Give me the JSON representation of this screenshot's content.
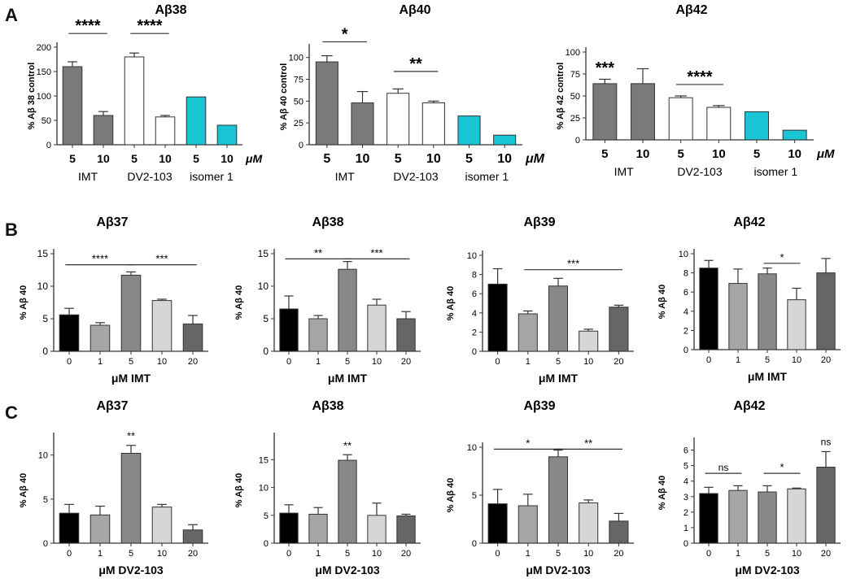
{
  "panels": {
    "a": "A",
    "b": "B",
    "c": "C"
  },
  "chart_data": [
    {
      "id": "A1",
      "type": "bar",
      "title": "Aβ38",
      "ylabel": "% Aβ 38 control",
      "ylim": [
        0,
        200
      ],
      "yticks": [
        "0",
        "50",
        "100",
        "150",
        "200"
      ],
      "categories": [
        "5",
        "10",
        "5",
        "10",
        "5",
        "10"
      ],
      "unit": "μM",
      "groups": [
        "IMT",
        "DV2-103",
        "isomer 1"
      ],
      "values": [
        160,
        60,
        180,
        57,
        98,
        40
      ],
      "errors": [
        10,
        8,
        8,
        3,
        0,
        0
      ],
      "colors": [
        "#7a7a7a",
        "#7a7a7a",
        "#ffffff",
        "#ffffff",
        "#19c5d4",
        "#19c5d4"
      ],
      "annotations": [
        {
          "text": "****",
          "from": 0,
          "to": 1,
          "y": 228,
          "line": true
        },
        {
          "text": "****",
          "from": 2,
          "to": 3,
          "y": 228,
          "line": true
        }
      ]
    },
    {
      "id": "A2",
      "type": "bar",
      "title": "Aβ40",
      "ylabel": "% Aβ 40 control",
      "ylim": [
        0,
        110
      ],
      "yticks": [
        "0",
        "25",
        "50",
        "75",
        "100"
      ],
      "categories": [
        "5",
        "10",
        "5",
        "10",
        "5",
        "10"
      ],
      "unit": "μM",
      "groups": [
        "IMT",
        "DV2-103",
        "isomer 1"
      ],
      "values": [
        95,
        48,
        59,
        48,
        33,
        11
      ],
      "errors": [
        7,
        13,
        5,
        2,
        0,
        0
      ],
      "colors": [
        "#7a7a7a",
        "#7a7a7a",
        "#ffffff",
        "#ffffff",
        "#19c5d4",
        "#19c5d4"
      ],
      "annotations": [
        {
          "text": "*",
          "from": 0,
          "to": 1,
          "y": 118,
          "line": true
        },
        {
          "text": "**",
          "from": 2,
          "to": 3,
          "y": 84,
          "line": true
        }
      ]
    },
    {
      "id": "A3",
      "type": "bar",
      "title": "Aβ42",
      "ylabel": "% Aβ 42 control",
      "ylim": [
        0,
        100
      ],
      "yticks": [
        "0",
        "25",
        "50",
        "75",
        "100"
      ],
      "categories": [
        "5",
        "10",
        "5",
        "10",
        "5",
        "10"
      ],
      "unit": "μM",
      "groups": [
        "IMT",
        "DV2-103",
        "isomer 1"
      ],
      "values": [
        64,
        64,
        48,
        37,
        32,
        11
      ],
      "errors": [
        5,
        17,
        2,
        2,
        0,
        0
      ],
      "colors": [
        "#7a7a7a",
        "#7a7a7a",
        "#ffffff",
        "#ffffff",
        "#19c5d4",
        "#19c5d4"
      ],
      "annotations": [
        {
          "text": "***",
          "from": 0,
          "to": 0,
          "y": 74,
          "line": false
        },
        {
          "text": "****",
          "from": 2,
          "to": 3,
          "y": 63,
          "line": true
        }
      ]
    },
    {
      "id": "B1",
      "type": "bar",
      "title": "Aβ37",
      "ylabel": "% Aβ 40",
      "xlabel": "μM IMT",
      "ylim": [
        0,
        15
      ],
      "yticks": [
        "0",
        "5",
        "10",
        "15"
      ],
      "categories": [
        "0",
        "1",
        "5",
        "10",
        "20"
      ],
      "values": [
        5.6,
        4.0,
        11.7,
        7.8,
        4.2
      ],
      "errors": [
        1.0,
        0.4,
        0.5,
        0.2,
        1.3
      ],
      "colors": [
        "#000000",
        "#a6a6a6",
        "#888888",
        "#d6d6d6",
        "#666666"
      ],
      "annotations": [
        {
          "text": "****",
          "from": 0,
          "to": 2,
          "y": 13.3,
          "line": true
        },
        {
          "text": "***",
          "from": 2,
          "to": 4,
          "y": 13.3,
          "line": true
        }
      ]
    },
    {
      "id": "B2",
      "type": "bar",
      "title": "Aβ38",
      "ylabel": "% Aβ 40",
      "xlabel": "μM IMT",
      "ylim": [
        0,
        15
      ],
      "yticks": [
        "0",
        "5",
        "10",
        "15"
      ],
      "categories": [
        "0",
        "1",
        "5",
        "10",
        "20"
      ],
      "values": [
        6.5,
        5.0,
        12.6,
        7.1,
        5.0
      ],
      "errors": [
        2.0,
        0.5,
        1.2,
        0.9,
        1.1
      ],
      "colors": [
        "#000000",
        "#a6a6a6",
        "#888888",
        "#d6d6d6",
        "#666666"
      ],
      "annotations": [
        {
          "text": "**",
          "from": 0,
          "to": 2,
          "y": 14.2,
          "line": true
        },
        {
          "text": "***",
          "from": 2,
          "to": 4,
          "y": 14.2,
          "line": true
        }
      ]
    },
    {
      "id": "B3",
      "type": "bar",
      "title": "Aβ39",
      "ylabel": "% Aβ 40",
      "xlabel": "μM IMT",
      "ylim": [
        0,
        10
      ],
      "yticks": [
        "0",
        "2",
        "4",
        "6",
        "8",
        "10"
      ],
      "categories": [
        "0",
        "1",
        "5",
        "10",
        "20"
      ],
      "values": [
        7.0,
        3.9,
        6.8,
        2.1,
        4.6
      ],
      "errors": [
        1.6,
        0.3,
        0.8,
        0.2,
        0.2
      ],
      "colors": [
        "#000000",
        "#a6a6a6",
        "#888888",
        "#d6d6d6",
        "#666666"
      ],
      "annotations": [
        {
          "text": "***",
          "from": 1,
          "to": 4,
          "y": 8.5,
          "line": true
        }
      ]
    },
    {
      "id": "B4",
      "type": "bar",
      "title": "Aβ42",
      "ylabel": "% Aβ 40",
      "xlabel": "μM IMT",
      "ylim": [
        0,
        10
      ],
      "yticks": [
        "0",
        "2",
        "4",
        "6",
        "8",
        "10"
      ],
      "categories": [
        "0",
        "1",
        "5",
        "10",
        "20"
      ],
      "values": [
        8.5,
        6.9,
        7.9,
        5.2,
        8.0
      ],
      "errors": [
        0.8,
        1.5,
        0.6,
        1.2,
        1.5
      ],
      "colors": [
        "#000000",
        "#a6a6a6",
        "#888888",
        "#d6d6d6",
        "#666666"
      ],
      "annotations": [
        {
          "text": "*",
          "from": 2,
          "to": 3,
          "y": 9.0,
          "line": true
        }
      ]
    },
    {
      "id": "C1",
      "type": "bar",
      "title": "Aβ37",
      "ylabel": "% Aβ 40",
      "xlabel": "μM DV2-103",
      "ylim": [
        0,
        12
      ],
      "yticks": [
        "0",
        "5",
        "10"
      ],
      "categories": [
        "0",
        "1",
        "5",
        "10",
        "20"
      ],
      "values": [
        3.4,
        3.2,
        10.2,
        4.1,
        1.5
      ],
      "errors": [
        1.0,
        1.0,
        0.9,
        0.3,
        0.6
      ],
      "colors": [
        "#000000",
        "#a6a6a6",
        "#888888",
        "#d6d6d6",
        "#666666"
      ],
      "annotations": [
        {
          "text": "**",
          "from": 2,
          "to": 2,
          "y": 11.6,
          "line": false
        }
      ]
    },
    {
      "id": "C2",
      "type": "bar",
      "title": "Aβ38",
      "ylabel": "% Aβ 40",
      "xlabel": "μM DV2-103",
      "ylim": [
        0,
        19
      ],
      "yticks": [
        "0",
        "5",
        "10",
        "15"
      ],
      "categories": [
        "0",
        "1",
        "5",
        "10",
        "20"
      ],
      "values": [
        5.4,
        5.2,
        14.9,
        5.0,
        4.9
      ],
      "errors": [
        1.5,
        1.2,
        1.0,
        2.2,
        0.3
      ],
      "colors": [
        "#000000",
        "#a6a6a6",
        "#888888",
        "#d6d6d6",
        "#666666"
      ],
      "annotations": [
        {
          "text": "**",
          "from": 2,
          "to": 2,
          "y": 16.6,
          "line": false
        }
      ]
    },
    {
      "id": "C3",
      "type": "bar",
      "title": "Aβ39",
      "ylabel": "% Aβ 40",
      "xlabel": "μM DV2-103",
      "ylim": [
        0,
        10
      ],
      "yticks": [
        "0",
        "5",
        "10"
      ],
      "categories": [
        "0",
        "1",
        "5",
        "10",
        "20"
      ],
      "values": [
        4.1,
        3.9,
        9.0,
        4.2,
        2.3
      ],
      "errors": [
        1.5,
        1.2,
        0.7,
        0.3,
        0.8
      ],
      "colors": [
        "#000000",
        "#a6a6a6",
        "#888888",
        "#d6d6d6",
        "#666666"
      ],
      "annotations": [
        {
          "text": "*",
          "from": 0,
          "to": 2,
          "y": 9.8,
          "line": true
        },
        {
          "text": "**",
          "from": 2,
          "to": 4,
          "y": 9.8,
          "line": true
        }
      ]
    },
    {
      "id": "C4",
      "type": "bar",
      "title": "Aβ42",
      "ylabel": "% Aβ 40",
      "xlabel": "μM DV2-103",
      "ylim": [
        0,
        6.5
      ],
      "yticks": [
        "0",
        "1",
        "2",
        "3",
        "4",
        "5",
        "6"
      ],
      "categories": [
        "0",
        "1",
        "5",
        "10",
        "20"
      ],
      "values": [
        3.2,
        3.4,
        3.3,
        3.5,
        4.9
      ],
      "errors": [
        0.4,
        0.3,
        0.4,
        0.05,
        1.0
      ],
      "colors": [
        "#000000",
        "#a6a6a6",
        "#888888",
        "#d6d6d6",
        "#666666"
      ],
      "annotations": [
        {
          "text": "ns",
          "from": 0,
          "to": 1,
          "y": 4.5,
          "line": true
        },
        {
          "text": "*",
          "from": 2,
          "to": 3,
          "y": 4.5,
          "line": true
        },
        {
          "text": "ns",
          "from": 4,
          "to": 4,
          "y": 6.2,
          "line": false
        }
      ]
    }
  ]
}
